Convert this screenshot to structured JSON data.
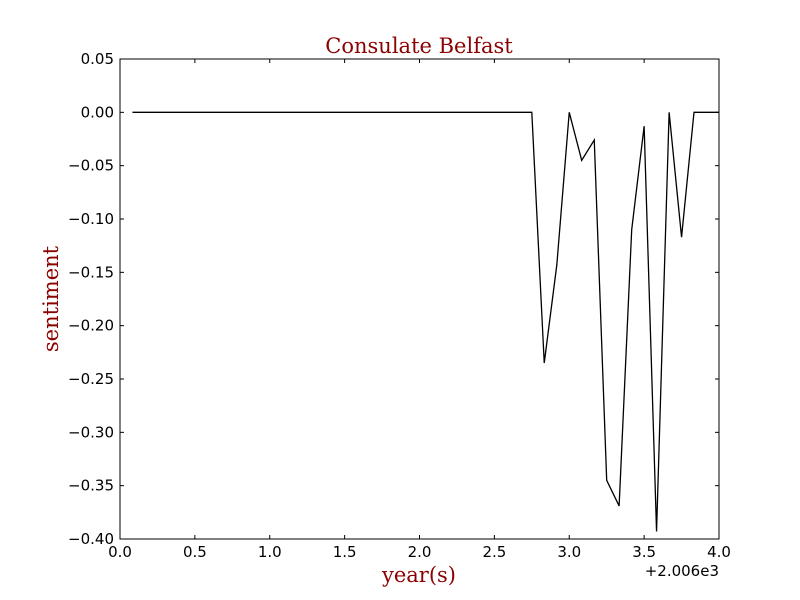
{
  "chart_data": {
    "type": "line",
    "title": "Consulate Belfast",
    "xlabel": "year(s)",
    "ylabel": "sentiment",
    "x_offset_label": "+2.006e3",
    "xlim": [
      0.0,
      4.0
    ],
    "ylim": [
      -0.4,
      0.05
    ],
    "xticks": [
      "0.0",
      "0.5",
      "1.0",
      "1.5",
      "2.0",
      "2.5",
      "3.0",
      "3.5",
      "4.0"
    ],
    "yticks": [
      "0.05",
      "0.00",
      "−0.05",
      "−0.10",
      "−0.15",
      "−0.20",
      "−0.25",
      "−0.30",
      "−0.35",
      "−0.40"
    ],
    "grid": false,
    "colors": {
      "line": "#000000",
      "label": "#8b0000",
      "frame": "#000000"
    },
    "series": [
      {
        "x": [
          0.083,
          2.75,
          2.833,
          2.917,
          3.0,
          3.083,
          3.167,
          3.25,
          3.333,
          3.417,
          3.5,
          3.583,
          3.667,
          3.75,
          3.833,
          3.917,
          4.0
        ],
        "y": [
          0.0,
          0.0,
          -0.235,
          -0.143,
          0.0,
          -0.045,
          -0.026,
          -0.345,
          -0.369,
          -0.11,
          -0.013,
          -0.393,
          0.0,
          -0.117,
          0.0,
          0.0,
          0.0
        ]
      }
    ]
  }
}
